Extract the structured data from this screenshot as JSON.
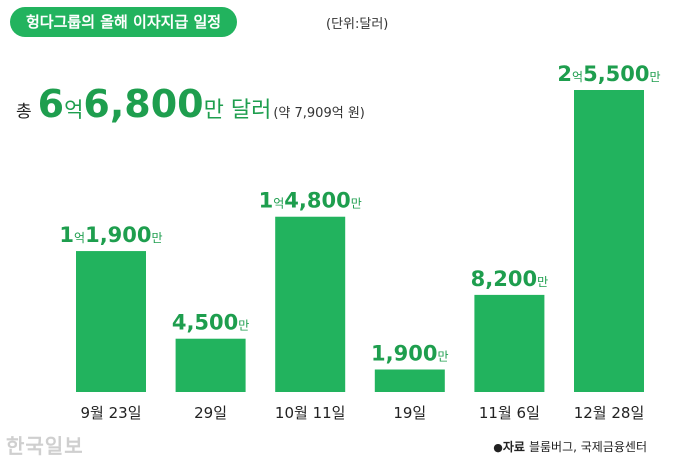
{
  "title": "헝다그룹의 올해 이자지급 일정",
  "unit_note": "(단위:달러)",
  "total": {
    "prefix": "총",
    "big1": "6",
    "small1": "억",
    "big2": "6,800",
    "suffix": "만 달러",
    "note": "(약 7,909억 원)"
  },
  "chart_data": {
    "type": "bar",
    "categories": [
      "9월 23일",
      "29일",
      "10월 11일",
      "19일",
      "11월 6일",
      "12월 28일"
    ],
    "values": [
      11900,
      4500,
      14800,
      1900,
      8200,
      25500
    ],
    "value_unit": "만 달러",
    "labels": [
      {
        "big": "1",
        "eok": "억",
        "num": "1,900",
        "man": "만"
      },
      {
        "big": "",
        "eok": "",
        "num": "4,500",
        "man": "만"
      },
      {
        "big": "1",
        "eok": "억",
        "num": "4,800",
        "man": "만"
      },
      {
        "big": "",
        "eok": "",
        "num": "1,900",
        "man": "만"
      },
      {
        "big": "",
        "eok": "",
        "num": "8,200",
        "man": "만"
      },
      {
        "big": "2",
        "eok": "억",
        "num": "5,500",
        "man": "만"
      }
    ],
    "ylim": [
      0,
      25500
    ],
    "grid": false,
    "bar_color": "#22b35e",
    "label_color": "#1e9e4e"
  },
  "source": {
    "label": "자료",
    "text": "블룸버그, 국제금융센터"
  },
  "watermark": "한국일보"
}
